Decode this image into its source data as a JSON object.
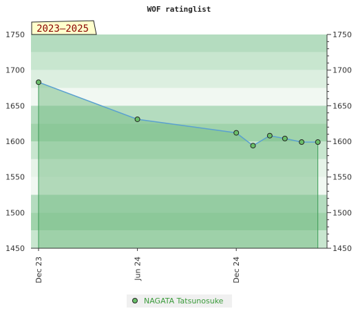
{
  "chart_data": {
    "type": "line",
    "title": "WOF ratinglist",
    "badge": "2023–2025",
    "xlabel": "",
    "ylabel": "",
    "ylim": [
      1450,
      1750
    ],
    "yticks": [
      1450,
      1500,
      1550,
      1600,
      1650,
      1700,
      1750
    ],
    "xlim": [
      "2023-12-01",
      "2025-06-01"
    ],
    "xticks": [
      {
        "date": "2023-12-01",
        "label": "Dec 23"
      },
      {
        "date": "2024-06-01",
        "label": "Jun 24"
      },
      {
        "date": "2024-12-01",
        "label": "Dec 24"
      }
    ],
    "series": [
      {
        "name": "NAGATA Tatsunosuke",
        "points": [
          {
            "date": "2023-12-01",
            "y": 1683
          },
          {
            "date": "2024-06-01",
            "y": 1631
          },
          {
            "date": "2024-12-01",
            "y": 1612
          },
          {
            "date": "2025-01-01",
            "y": 1594
          },
          {
            "date": "2025-02-01",
            "y": 1608
          },
          {
            "date": "2025-03-01",
            "y": 1604
          },
          {
            "date": "2025-04-01",
            "y": 1599
          },
          {
            "date": "2025-05-01",
            "y": 1599
          }
        ]
      }
    ],
    "colors": {
      "line": "#5aa0d0",
      "area": "#7cc08a",
      "marker": "#6abf6a",
      "badge_bg": "#ffffcc",
      "badge_text": "#8b0000"
    },
    "legend_position": "bottom-center",
    "grid": true
  }
}
